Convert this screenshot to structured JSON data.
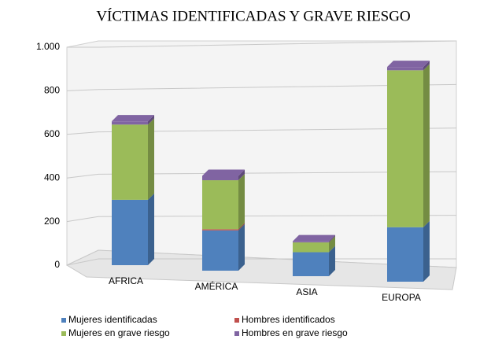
{
  "chart_data": {
    "type": "bar3d_stacked",
    "title": "VÍCTIMAS IDENTIFICADAS Y GRAVE RIESGO",
    "categories": [
      "AFRICA",
      "AMÉRICA",
      "ASIA",
      "EUROPA"
    ],
    "series": [
      {
        "name": "Mujeres identificadas",
        "color": "#4f81bd",
        "values": [
          300,
          185,
          110,
          250
        ]
      },
      {
        "name": "Hombres identificados",
        "color": "#c0504d",
        "values": [
          0,
          5,
          0,
          0
        ]
      },
      {
        "name": "Mujeres en grave riesgo",
        "color": "#9bbb59",
        "values": [
          345,
          225,
          45,
          720
        ]
      },
      {
        "name": "Hombres en grave riesgo",
        "color": "#8064a2",
        "values": [
          15,
          20,
          5,
          15
        ]
      }
    ],
    "ylim": [
      0,
      1000
    ],
    "yticks": [
      0,
      200,
      400,
      600,
      800,
      {
        "value": 1000,
        "label": "1.000"
      }
    ],
    "grid": true
  }
}
